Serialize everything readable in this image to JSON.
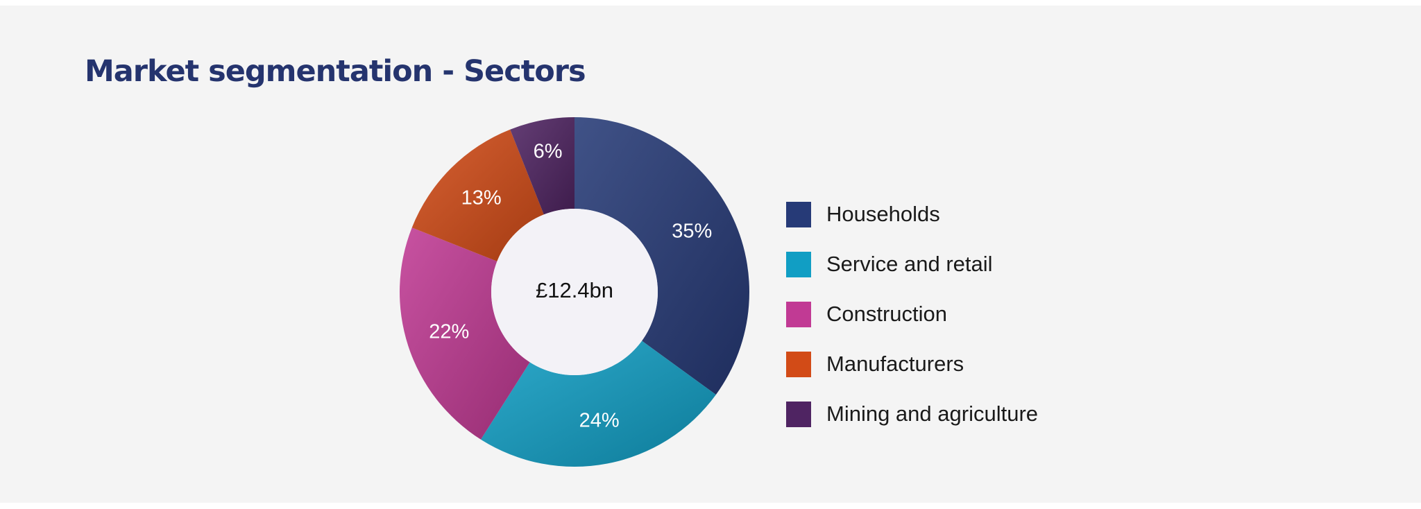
{
  "page": {
    "title": "Market segmentation - Sectors"
  },
  "chart_data": {
    "type": "pie",
    "donut": true,
    "center_label": "£12.4bn",
    "categories": [
      "Households",
      "Service and retail",
      "Construction",
      "Manufacturers",
      "Mining and agriculture"
    ],
    "values": [
      35,
      24,
      22,
      13,
      6
    ],
    "data_labels": [
      "35%",
      "24%",
      "22%",
      "13%",
      "6%"
    ],
    "colors": [
      "#263a77",
      "#119ec4",
      "#c13a94",
      "#d24b17",
      "#4f2462"
    ],
    "legend_position": "right"
  }
}
